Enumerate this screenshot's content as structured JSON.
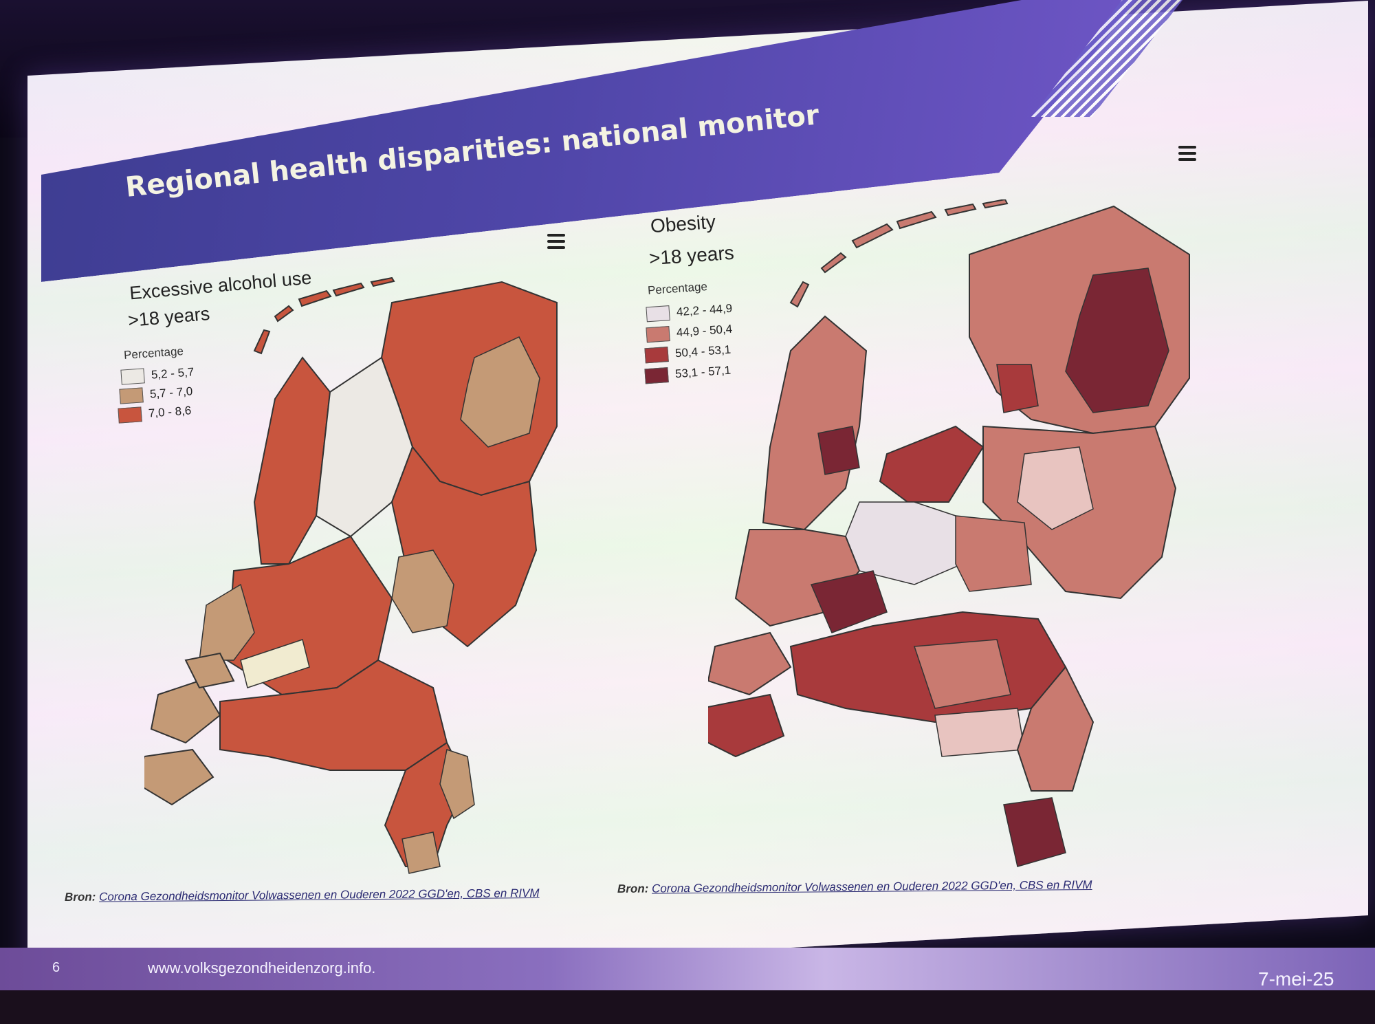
{
  "slide": {
    "title": "Regional health disparities: national monitor",
    "page_number": "6",
    "footer_url": "www.volksgezondheidenzorg.info.",
    "date": "7-mei-25"
  },
  "left_map": {
    "title_line1": "Excessive alcohol use",
    "title_line2": ">18 years",
    "legend_title": "Percentage",
    "legend": [
      {
        "range": "5,2 - 5,7",
        "color": "#ece9e4"
      },
      {
        "range": "5,7 - 7,0",
        "color": "#c49a76"
      },
      {
        "range": "7,0 - 8,6",
        "color": "#c8553e"
      }
    ],
    "source_prefix": "Bron:",
    "source_text": "Corona Gezondheidsmonitor Volwassenen en Ouderen 2022 GGD'en, CBS en RIVM"
  },
  "right_map": {
    "title_line1": "Obesity",
    "title_line2": ">18 years",
    "legend_title": "Percentage",
    "legend": [
      {
        "range": "42,2 - 44,9",
        "color": "#e8e0e6"
      },
      {
        "range": "44,9 - 50,4",
        "color": "#c97a70"
      },
      {
        "range": "50,4 - 53,1",
        "color": "#a83a3c"
      },
      {
        "range": "53,1 - 57,1",
        "color": "#7a2634"
      }
    ],
    "source_prefix": "Bron:",
    "source_text": "Corona Gezondheidsmonitor Volwassenen en Ouderen 2022 GGD'en, CBS en RIVM"
  }
}
